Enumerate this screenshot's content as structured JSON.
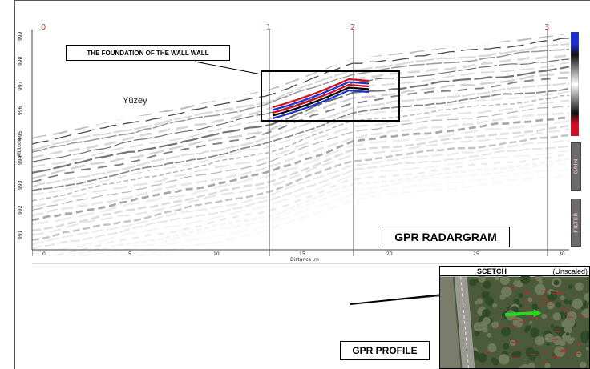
{
  "radargram": {
    "markers": [
      "0",
      "1",
      "2",
      "3"
    ],
    "y_ticks": [
      "999",
      "998",
      "997",
      "996",
      "995",
      "994",
      "993",
      "992",
      "991"
    ],
    "x_ticks": [
      "0",
      "5",
      "10",
      "15",
      "20",
      "25",
      "30"
    ],
    "xlabel": "Distance ,m",
    "ylabel": "Altitude",
    "surface_label": "Yüzey",
    "foundation_label": "THE FOUNDATION OF THE WALL WALL",
    "title_label": "GPR RADARGRAM",
    "gain_tab": "GAIN",
    "filter_tab": "FILTER"
  },
  "sketch": {
    "title": "SCETCH",
    "scale_note": "(Unscaled)",
    "profile_label": "GPR PROFILE"
  },
  "colors": {
    "marker": "#c0392b",
    "reflector_red": "#d01020",
    "reflector_blue": "#1a2fd0"
  }
}
